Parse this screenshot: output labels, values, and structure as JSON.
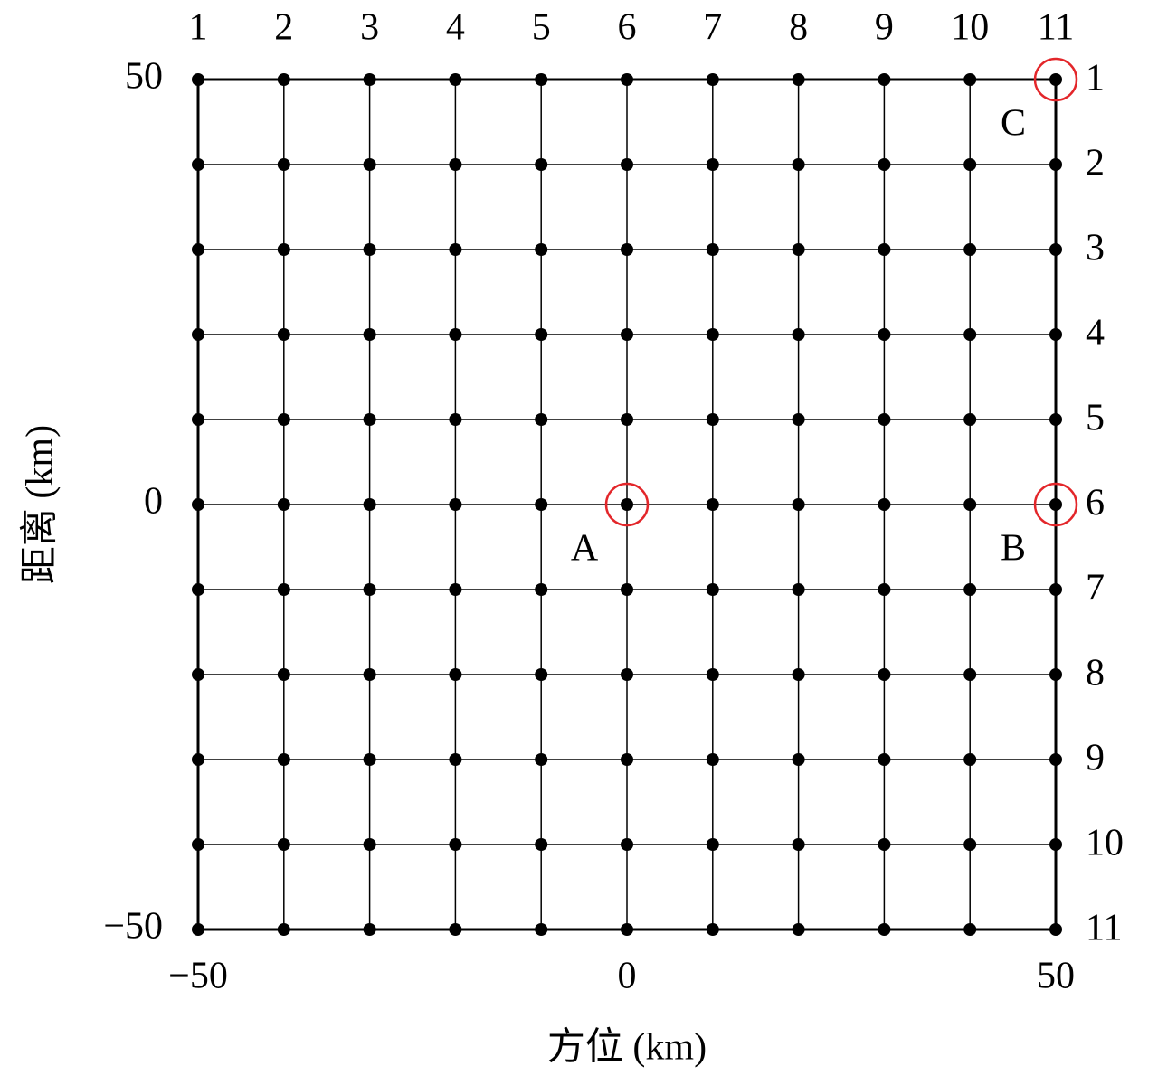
{
  "chart_data": {
    "type": "scatter",
    "xlabel": "方位 (km)",
    "ylabel": "距离 (km)",
    "xlim": [
      -50,
      50
    ],
    "ylim": [
      -50,
      50
    ],
    "xticks": [
      {
        "value": -50,
        "label": "−50"
      },
      0,
      50
    ],
    "yticks": [
      {
        "value": -50,
        "label": "−50"
      },
      0,
      50
    ],
    "x2lim": [
      1,
      11
    ],
    "x2ticks": [
      1,
      2,
      3,
      4,
      5,
      6,
      7,
      8,
      9,
      10,
      11
    ],
    "y2lim": [
      11,
      1
    ],
    "y2ticks": [
      1,
      2,
      3,
      4,
      5,
      6,
      7,
      8,
      9,
      10,
      11
    ],
    "grid": true,
    "series": [
      {
        "color": "#000000",
        "x": [
          -50,
          -40,
          -30,
          -20,
          -10,
          0,
          10,
          20,
          30,
          40,
          50,
          -50,
          -40,
          -30,
          -20,
          -10,
          0,
          10,
          20,
          30,
          40,
          50,
          -50,
          -40,
          -30,
          -20,
          -10,
          0,
          10,
          20,
          30,
          40,
          50,
          -50,
          -40,
          -30,
          -20,
          -10,
          0,
          10,
          20,
          30,
          40,
          50,
          -50,
          -40,
          -30,
          -20,
          -10,
          0,
          10,
          20,
          30,
          40,
          50,
          -50,
          -40,
          -30,
          -20,
          -10,
          0,
          10,
          20,
          30,
          40,
          50,
          -50,
          -40,
          -30,
          -20,
          -10,
          0,
          10,
          20,
          30,
          40,
          50,
          -50,
          -40,
          -30,
          -20,
          -10,
          0,
          10,
          20,
          30,
          40,
          50,
          -50,
          -40,
          -30,
          -20,
          -10,
          0,
          10,
          20,
          30,
          40,
          50,
          -50,
          -40,
          -30,
          -20,
          -10,
          0,
          10,
          20,
          30,
          40,
          50,
          -50,
          -40,
          -30,
          -20,
          -10,
          0,
          10,
          20,
          30,
          40,
          50
        ],
        "values": [
          50,
          50,
          50,
          50,
          50,
          50,
          50,
          50,
          50,
          50,
          50,
          40,
          40,
          40,
          40,
          40,
          40,
          40,
          40,
          40,
          40,
          40,
          30,
          30,
          30,
          30,
          30,
          30,
          30,
          30,
          30,
          30,
          30,
          20,
          20,
          20,
          20,
          20,
          20,
          20,
          20,
          20,
          20,
          20,
          10,
          10,
          10,
          10,
          10,
          10,
          10,
          10,
          10,
          10,
          10,
          0,
          0,
          0,
          0,
          0,
          0,
          0,
          0,
          0,
          0,
          0,
          -10,
          -10,
          -10,
          -10,
          -10,
          -10,
          -10,
          -10,
          -10,
          -10,
          -10,
          -20,
          -20,
          -20,
          -20,
          -20,
          -20,
          -20,
          -20,
          -20,
          -20,
          -20,
          -30,
          -30,
          -30,
          -30,
          -30,
          -30,
          -30,
          -30,
          -30,
          -30,
          -30,
          -40,
          -40,
          -40,
          -40,
          -40,
          -40,
          -40,
          -40,
          -40,
          -40,
          -40,
          -50,
          -50,
          -50,
          -50,
          -50,
          -50,
          -50,
          -50,
          -50,
          -50,
          -50
        ]
      }
    ],
    "annotations": [
      {
        "text": "A",
        "x": 0,
        "y": 0
      },
      {
        "text": "B",
        "x": 50,
        "y": 0
      },
      {
        "text": "C",
        "x": 50,
        "y": 50
      }
    ],
    "annotation_color": "#e3262a"
  }
}
